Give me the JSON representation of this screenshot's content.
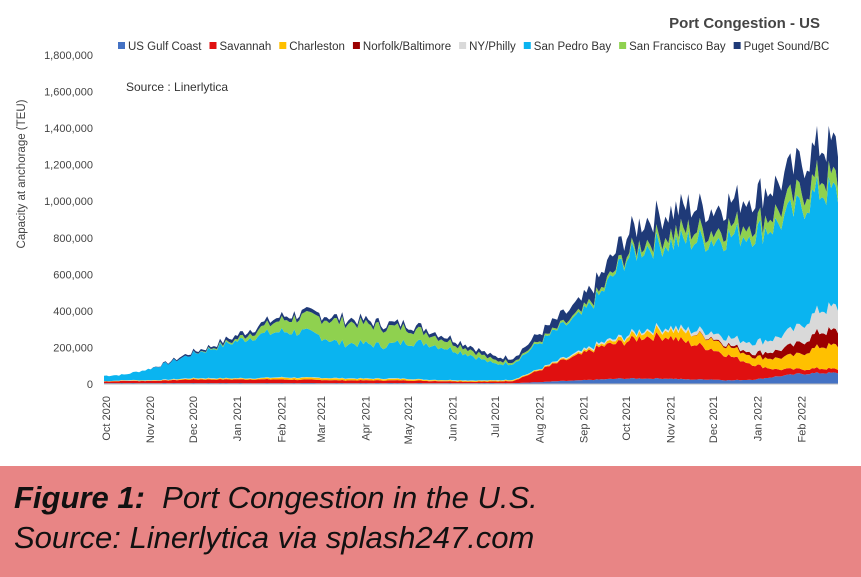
{
  "chart_data": {
    "type": "area",
    "stacked": true,
    "title": "Port Congestion - US",
    "annotation": "Source : Linerlytica",
    "ylabel": "Capacity at anchorage (TEU)",
    "ylim": [
      0,
      1800000
    ],
    "yticks": [
      "0",
      "200,000",
      "400,000",
      "600,000",
      "800,000",
      "1,000,000",
      "1,200,000",
      "1,400,000",
      "1,600,000",
      "1,800,000"
    ],
    "xticks": [
      "Oct 2020",
      "Nov 2020",
      "Dec 2020",
      "Jan 2021",
      "Feb 2021",
      "Mar 2021",
      "Apr 2021",
      "May 2021",
      "Jun 2021",
      "Jul 2021",
      "Aug 2021",
      "Sep 2021",
      "Oct 2021",
      "Nov 2021",
      "Dec 2021",
      "Jan 2022",
      "Feb 2022"
    ],
    "x": [
      "2020-10-01",
      "2020-10-15",
      "2020-11-01",
      "2020-11-15",
      "2020-12-01",
      "2020-12-15",
      "2021-01-01",
      "2021-01-15",
      "2021-02-01",
      "2021-02-15",
      "2021-03-01",
      "2021-03-15",
      "2021-04-01",
      "2021-04-15",
      "2021-05-01",
      "2021-05-15",
      "2021-06-01",
      "2021-06-15",
      "2021-07-01",
      "2021-07-15",
      "2021-08-01",
      "2021-08-15",
      "2021-09-01",
      "2021-09-15",
      "2021-10-01",
      "2021-10-15",
      "2021-11-01",
      "2021-11-15",
      "2021-12-01",
      "2021-12-15",
      "2022-01-01",
      "2022-01-15",
      "2022-02-01",
      "2022-02-15",
      "2022-02-28"
    ],
    "legend_position": "top",
    "series": [
      {
        "name": "US Gulf Coast",
        "color": "#4472c4",
        "values": [
          5000,
          5000,
          5000,
          5000,
          5000,
          5000,
          5000,
          5000,
          5000,
          5000,
          5000,
          5000,
          5000,
          5000,
          5000,
          5000,
          5000,
          5000,
          5000,
          5000,
          10000,
          15000,
          20000,
          25000,
          30000,
          30000,
          30000,
          25000,
          25000,
          20000,
          25000,
          40000,
          55000,
          60000,
          60000
        ]
      },
      {
        "name": "Savannah",
        "color": "#e01010",
        "values": [
          8000,
          12000,
          12000,
          15000,
          20000,
          20000,
          20000,
          20000,
          20000,
          18000,
          18000,
          15000,
          15000,
          15000,
          15000,
          12000,
          10000,
          8000,
          8000,
          12000,
          60000,
          100000,
          140000,
          180000,
          200000,
          230000,
          230000,
          200000,
          170000,
          130000,
          80000,
          40000,
          25000,
          25000,
          20000
        ]
      },
      {
        "name": "Charleston",
        "color": "#ffc000",
        "values": [
          2000,
          2000,
          2000,
          2000,
          5000,
          5000,
          5000,
          5000,
          10000,
          10000,
          10000,
          10000,
          8000,
          8000,
          8000,
          5000,
          5000,
          5000,
          5000,
          5000,
          5000,
          5000,
          8000,
          10000,
          20000,
          30000,
          40000,
          55000,
          60000,
          50000,
          45000,
          60000,
          80000,
          120000,
          130000
        ]
      },
      {
        "name": "Norfolk/Baltimore",
        "color": "#9b0000",
        "values": [
          0,
          0,
          0,
          0,
          0,
          0,
          0,
          0,
          0,
          0,
          0,
          0,
          0,
          0,
          0,
          0,
          0,
          0,
          0,
          0,
          0,
          0,
          0,
          0,
          0,
          0,
          0,
          0,
          5000,
          10000,
          20000,
          40000,
          60000,
          80000,
          80000
        ]
      },
      {
        "name": "NY/Philly",
        "color": "#d9d9d9",
        "values": [
          0,
          2000,
          2000,
          2000,
          2000,
          2000,
          2000,
          2000,
          2000,
          2000,
          2000,
          2000,
          2000,
          2000,
          2000,
          2000,
          2000,
          2000,
          2000,
          2000,
          2000,
          5000,
          8000,
          10000,
          10000,
          10000,
          12000,
          15000,
          30000,
          40000,
          60000,
          70000,
          90000,
          120000,
          130000
        ]
      },
      {
        "name": "San Pedro Bay",
        "color": "#0ab4f0",
        "values": [
          30000,
          30000,
          60000,
          90000,
          130000,
          160000,
          200000,
          230000,
          250000,
          250000,
          230000,
          190000,
          190000,
          180000,
          200000,
          200000,
          170000,
          140000,
          90000,
          90000,
          140000,
          170000,
          200000,
          270000,
          420000,
          450000,
          460000,
          490000,
          500000,
          560000,
          600000,
          620000,
          650000,
          650000,
          620000
        ]
      },
      {
        "name": "San Francisco Bay",
        "color": "#8fd14f",
        "values": [
          0,
          0,
          0,
          0,
          0,
          5000,
          10000,
          30000,
          60000,
          80000,
          100000,
          120000,
          110000,
          100000,
          80000,
          60000,
          40000,
          30000,
          20000,
          10000,
          10000,
          10000,
          15000,
          20000,
          20000,
          30000,
          50000,
          60000,
          50000,
          60000,
          60000,
          70000,
          80000,
          80000,
          80000
        ]
      },
      {
        "name": "Puget Sound/BC",
        "color": "#1f3a78",
        "values": [
          0,
          0,
          0,
          5000,
          10000,
          10000,
          20000,
          20000,
          20000,
          20000,
          20000,
          20000,
          20000,
          20000,
          20000,
          20000,
          20000,
          20000,
          20000,
          20000,
          40000,
          50000,
          60000,
          80000,
          100000,
          120000,
          120000,
          130000,
          120000,
          130000,
          150000,
          150000,
          160000,
          170000,
          180000
        ]
      }
    ]
  },
  "caption": {
    "label": "Figure 1:",
    "line1": "Port Congestion in the U.S.",
    "line2": "Source: Linerlytica via splash247.com"
  }
}
